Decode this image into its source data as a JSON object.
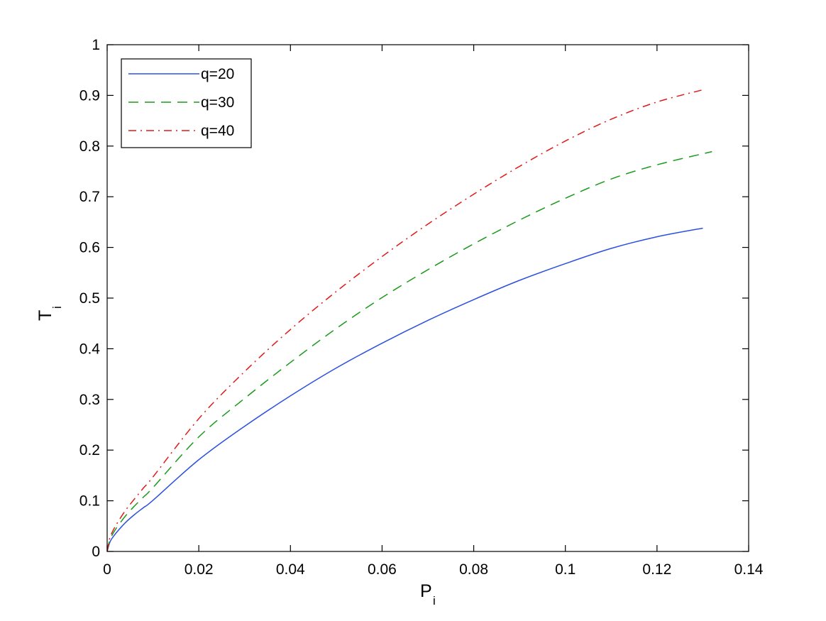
{
  "chart_data": {
    "type": "line",
    "title": "",
    "xlabel": {
      "main": "P",
      "sub": "i"
    },
    "ylabel": {
      "main": "T",
      "sub": "i"
    },
    "xlim": [
      0,
      0.14
    ],
    "ylim": [
      0,
      1
    ],
    "xticks": [
      0,
      0.02,
      0.04,
      0.06,
      0.08,
      0.1,
      0.12,
      0.14
    ],
    "xtick_labels": [
      "0",
      "0.02",
      "0.04",
      "0.06",
      "0.08",
      "0.1",
      "0.12",
      "0.14"
    ],
    "yticks": [
      0,
      0.1,
      0.2,
      0.3,
      0.4,
      0.5,
      0.6,
      0.7,
      0.8,
      0.9,
      1
    ],
    "ytick_labels": [
      "0",
      "0.1",
      "0.2",
      "0.3",
      "0.4",
      "0.5",
      "0.6",
      "0.7",
      "0.8",
      "0.9",
      "1"
    ],
    "grid": false,
    "legend_position": "top-left",
    "series": [
      {
        "name": "q=20",
        "color": "#2b50e0",
        "style": "solid",
        "x": [
          0,
          0.0005,
          0.001,
          0.002,
          0.004,
          0.006,
          0.008,
          0.01,
          0.02,
          0.03,
          0.04,
          0.05,
          0.06,
          0.07,
          0.08,
          0.09,
          0.1,
          0.11,
          0.12,
          0.13
        ],
        "y": [
          0,
          0.016,
          0.025,
          0.037,
          0.057,
          0.073,
          0.087,
          0.101,
          0.181,
          0.247,
          0.307,
          0.362,
          0.411,
          0.456,
          0.497,
          0.535,
          0.568,
          0.598,
          0.621,
          0.638
        ]
      },
      {
        "name": "q=30",
        "color": "#1a9a1a",
        "style": "dashed",
        "x": [
          0,
          0.0005,
          0.001,
          0.002,
          0.004,
          0.006,
          0.008,
          0.01,
          0.02,
          0.03,
          0.04,
          0.05,
          0.06,
          0.07,
          0.08,
          0.09,
          0.1,
          0.11,
          0.12,
          0.132
        ],
        "y": [
          0,
          0.02,
          0.031,
          0.046,
          0.07,
          0.09,
          0.108,
          0.126,
          0.226,
          0.302,
          0.373,
          0.44,
          0.501,
          0.556,
          0.607,
          0.654,
          0.697,
          0.735,
          0.763,
          0.789
        ]
      },
      {
        "name": "q=40",
        "color": "#e01919",
        "style": "dashdot",
        "x": [
          0,
          0.0005,
          0.001,
          0.002,
          0.004,
          0.006,
          0.008,
          0.01,
          0.02,
          0.03,
          0.04,
          0.05,
          0.06,
          0.07,
          0.08,
          0.09,
          0.1,
          0.11,
          0.12,
          0.13
        ],
        "y": [
          0,
          0.024,
          0.036,
          0.053,
          0.081,
          0.104,
          0.126,
          0.147,
          0.262,
          0.355,
          0.438,
          0.513,
          0.582,
          0.646,
          0.705,
          0.76,
          0.81,
          0.853,
          0.887,
          0.911
        ]
      }
    ]
  }
}
